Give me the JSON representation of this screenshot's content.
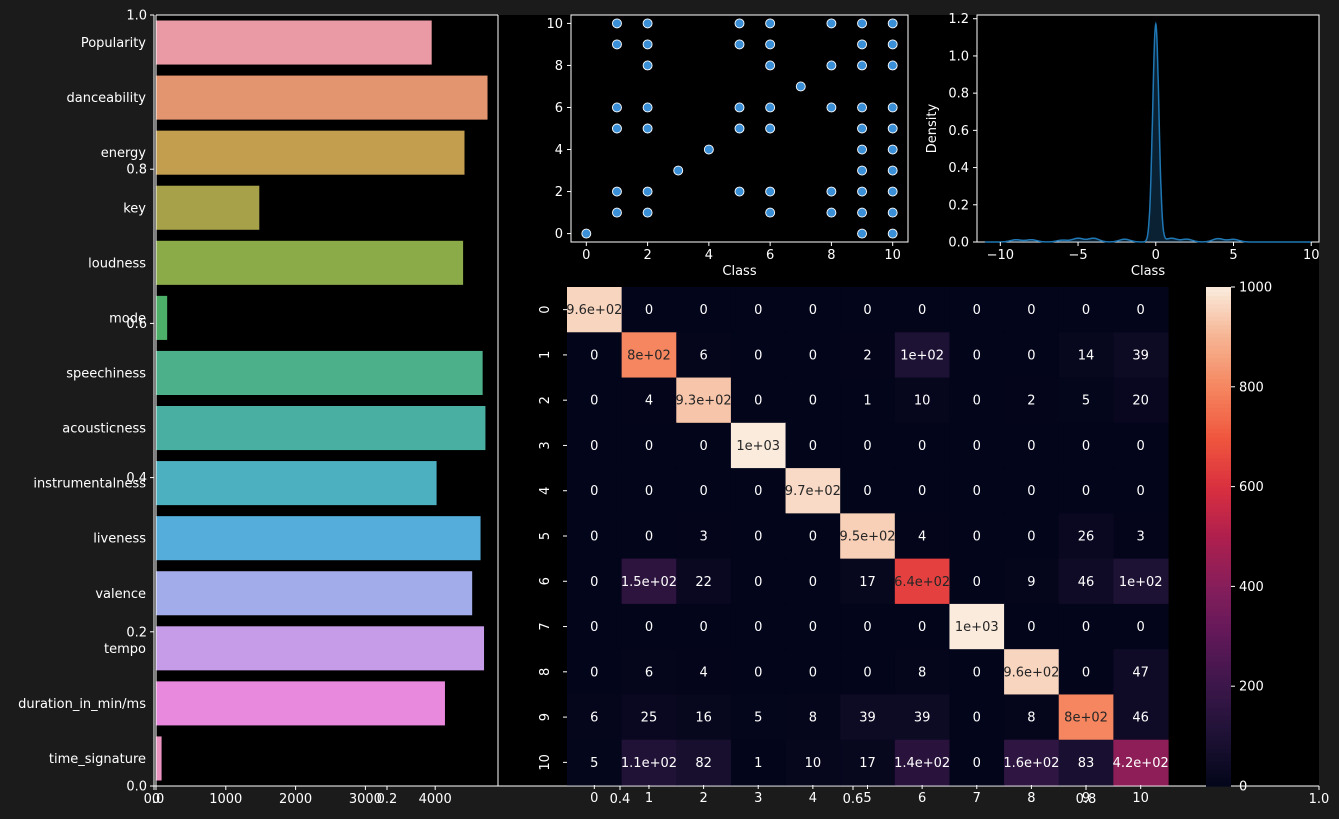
{
  "figure": {
    "background": "#1b1b1b",
    "axes_bg": "#000000",
    "outer_axes": {
      "x_ticks": [
        0.0,
        0.2,
        0.4,
        0.6,
        0.8,
        1.0
      ],
      "y_ticks": [
        0.0,
        0.2,
        0.4,
        0.6,
        0.8,
        1.0
      ],
      "tick_labels": [
        "0.0",
        "0.2",
        "0.4",
        "0.6",
        "0.8",
        "1.0"
      ]
    }
  },
  "chart_data": [
    {
      "type": "bar",
      "orientation": "horizontal",
      "categories": [
        "Popularity",
        "danceability",
        "energy",
        "key",
        "loudness",
        "mode",
        "speechiness",
        "acousticness",
        "instrumentalness",
        "liveness",
        "valence",
        "tempo",
        "duration_in_min/ms",
        "time_signature"
      ],
      "values": [
        3950,
        4750,
        4420,
        1480,
        4400,
        160,
        4680,
        4720,
        4020,
        4650,
        4530,
        4700,
        4140,
        80
      ],
      "colors": [
        "#e99aa4",
        "#e3956f",
        "#c39e4f",
        "#a7a24a",
        "#8aab48",
        "#4db068",
        "#4cb18b",
        "#4aafa3",
        "#4db0c0",
        "#55addb",
        "#a3acea",
        "#c69be8",
        "#e889de",
        "#eb94c1"
      ],
      "x_ticks": [
        0,
        1000,
        2000,
        3000,
        4000
      ],
      "x_tick_labels": [
        "0",
        "1000",
        "2000",
        "3000",
        "4000"
      ],
      "xlim": [
        0,
        4900
      ]
    },
    {
      "type": "scatter",
      "xlabel": "Class",
      "ylabel": "",
      "xlim": [
        -0.5,
        10.5
      ],
      "ylim": [
        -0.4,
        10.4
      ],
      "x_ticks": [
        0,
        2,
        4,
        6,
        8,
        10
      ],
      "y_ticks": [
        0,
        2,
        4,
        6,
        8,
        10
      ],
      "points": [
        [
          0,
          0
        ],
        [
          1,
          1
        ],
        [
          1,
          2
        ],
        [
          1,
          5
        ],
        [
          1,
          6
        ],
        [
          1,
          9
        ],
        [
          1,
          10
        ],
        [
          2,
          1
        ],
        [
          2,
          2
        ],
        [
          2,
          5
        ],
        [
          2,
          6
        ],
        [
          2,
          8
        ],
        [
          2,
          9
        ],
        [
          2,
          10
        ],
        [
          3,
          3
        ],
        [
          4,
          4
        ],
        [
          5,
          2
        ],
        [
          5,
          5
        ],
        [
          5,
          6
        ],
        [
          5,
          9
        ],
        [
          5,
          10
        ],
        [
          6,
          1
        ],
        [
          6,
          2
        ],
        [
          6,
          5
        ],
        [
          6,
          6
        ],
        [
          6,
          8
        ],
        [
          6,
          9
        ],
        [
          6,
          10
        ],
        [
          7,
          7
        ],
        [
          8,
          1
        ],
        [
          8,
          2
        ],
        [
          8,
          6
        ],
        [
          8,
          8
        ],
        [
          8,
          10
        ],
        [
          9,
          0
        ],
        [
          9,
          1
        ],
        [
          9,
          2
        ],
        [
          9,
          3
        ],
        [
          9,
          4
        ],
        [
          9,
          5
        ],
        [
          9,
          6
        ],
        [
          9,
          8
        ],
        [
          9,
          9
        ],
        [
          9,
          10
        ],
        [
          10,
          0
        ],
        [
          10,
          1
        ],
        [
          10,
          2
        ],
        [
          10,
          3
        ],
        [
          10,
          4
        ],
        [
          10,
          5
        ],
        [
          10,
          6
        ],
        [
          10,
          8
        ],
        [
          10,
          9
        ],
        [
          10,
          10
        ]
      ],
      "marker_color": "#3b8fd6"
    },
    {
      "type": "area",
      "xlabel": "Class",
      "ylabel": "Density",
      "xlim": [
        -11.5,
        10.5
      ],
      "ylim": [
        0,
        1.22
      ],
      "x_ticks": [
        -10,
        -5,
        0,
        5,
        10
      ],
      "x_tick_labels": [
        "−10",
        "−5",
        "0",
        "5",
        "10"
      ],
      "y_ticks": [
        0.0,
        0.2,
        0.4,
        0.6,
        0.8,
        1.0,
        1.2
      ],
      "y_tick_labels": [
        "0.0",
        "0.2",
        "0.4",
        "0.6",
        "0.8",
        "1.0",
        "1.2"
      ],
      "peak": {
        "x": 0,
        "y": 1.17,
        "sigma": 0.2
      },
      "bumps": [
        {
          "x": -9,
          "y": 0.012
        },
        {
          "x": -8,
          "y": 0.012
        },
        {
          "x": -6,
          "y": 0.01
        },
        {
          "x": -5,
          "y": 0.02
        },
        {
          "x": -4,
          "y": 0.02
        },
        {
          "x": -2,
          "y": 0.015
        },
        {
          "x": 1,
          "y": 0.02
        },
        {
          "x": 2,
          "y": 0.015
        },
        {
          "x": 4,
          "y": 0.018
        },
        {
          "x": 5,
          "y": 0.014
        }
      ],
      "line_color": "#1f77b4"
    },
    {
      "type": "heatmap",
      "row_labels": [
        "0",
        "1",
        "2",
        "3",
        "4",
        "5",
        "6",
        "7",
        "8",
        "9",
        "10"
      ],
      "col_labels": [
        "0",
        "1",
        "2",
        "3",
        "4",
        "5",
        "6",
        "7",
        "8",
        "9",
        "10"
      ],
      "values": [
        [
          960,
          0,
          0,
          0,
          0,
          0,
          0,
          0,
          0,
          0,
          0
        ],
        [
          0,
          800,
          6,
          0,
          0,
          2,
          100,
          0,
          0,
          14,
          39
        ],
        [
          0,
          4,
          930,
          0,
          0,
          1,
          10,
          0,
          2,
          5,
          20
        ],
        [
          0,
          0,
          0,
          1000,
          0,
          0,
          0,
          0,
          0,
          0,
          0
        ],
        [
          0,
          0,
          0,
          0,
          970,
          0,
          0,
          0,
          0,
          0,
          0
        ],
        [
          0,
          0,
          3,
          0,
          0,
          950,
          4,
          0,
          0,
          26,
          3
        ],
        [
          0,
          150,
          22,
          0,
          0,
          17,
          640,
          0,
          9,
          46,
          100
        ],
        [
          0,
          0,
          0,
          0,
          0,
          0,
          0,
          1000,
          0,
          0,
          0
        ],
        [
          0,
          6,
          4,
          0,
          0,
          0,
          8,
          0,
          960,
          0,
          47
        ],
        [
          6,
          25,
          16,
          5,
          8,
          39,
          39,
          0,
          8,
          800,
          46
        ],
        [
          5,
          110,
          82,
          1,
          10,
          17,
          140,
          0,
          160,
          83,
          420
        ]
      ],
      "annotations": [
        [
          "9.6e+02",
          "0",
          "0",
          "0",
          "0",
          "0",
          "0",
          "0",
          "0",
          "0",
          "0"
        ],
        [
          "0",
          "8e+02",
          "6",
          "0",
          "0",
          "2",
          "1e+02",
          "0",
          "0",
          "14",
          "39"
        ],
        [
          "0",
          "4",
          "9.3e+02",
          "0",
          "0",
          "1",
          "10",
          "0",
          "2",
          "5",
          "20"
        ],
        [
          "0",
          "0",
          "0",
          "1e+03",
          "0",
          "0",
          "0",
          "0",
          "0",
          "0",
          "0"
        ],
        [
          "0",
          "0",
          "0",
          "0",
          "9.7e+02",
          "0",
          "0",
          "0",
          "0",
          "0",
          "0"
        ],
        [
          "0",
          "0",
          "3",
          "0",
          "0",
          "9.5e+02",
          "4",
          "0",
          "0",
          "26",
          "3"
        ],
        [
          "0",
          "1.5e+02",
          "22",
          "0",
          "0",
          "17",
          "6.4e+02",
          "0",
          "9",
          "46",
          "1e+02"
        ],
        [
          "0",
          "0",
          "0",
          "0",
          "0",
          "0",
          "0",
          "1e+03",
          "0",
          "0",
          "0"
        ],
        [
          "0",
          "6",
          "4",
          "0",
          "0",
          "0",
          "8",
          "0",
          "9.6e+02",
          "0",
          "47"
        ],
        [
          "6",
          "25",
          "16",
          "5",
          "8",
          "39",
          "39",
          "0",
          "8",
          "8e+02",
          "46"
        ],
        [
          "5",
          "1.1e+02",
          "82",
          "1",
          "10",
          "17",
          "1.4e+02",
          "0",
          "1.6e+02",
          "83",
          "4.2e+02"
        ]
      ],
      "vmin": 0,
      "vmax": 1000,
      "colorbar_ticks": [
        0,
        200,
        400,
        600,
        800,
        1000
      ],
      "colorbar_tick_labels": [
        "0",
        "200",
        "400",
        "600",
        "800",
        "1000"
      ],
      "colormap": "rocket"
    }
  ]
}
